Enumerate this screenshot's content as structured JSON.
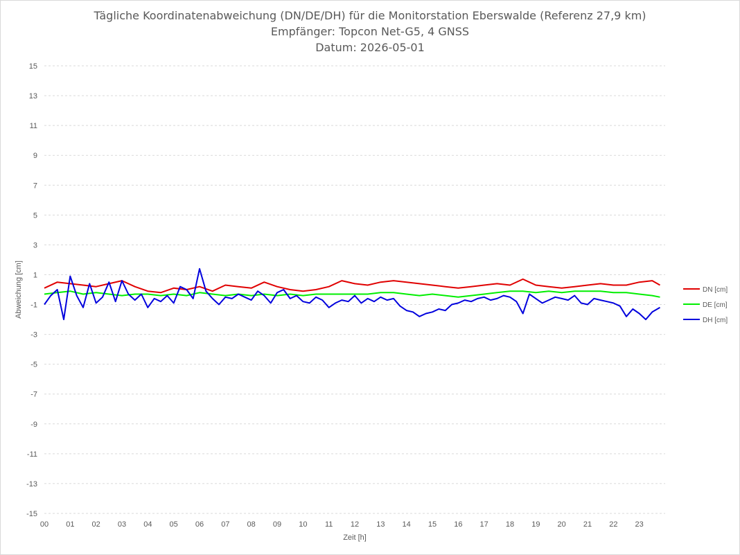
{
  "chart_data": {
    "type": "line",
    "title": "Tägliche Koordinatenabweichung (DN/DE/DH) für die Monitorstation Eberswalde (Referenz 27,9 km)",
    "subtitle": "Empfänger: Topcon Net-G5, 4 GNSS",
    "date_line": "Datum: 2026-05-01",
    "xlabel": "Zeit [h]",
    "ylabel": "Abweichung [cm]",
    "ylim": [
      -15,
      15
    ],
    "xlim": [
      0,
      24
    ],
    "y_ticks": [
      "15",
      "13",
      "11",
      "9",
      "7",
      "5",
      "3",
      "1",
      "-1",
      "-3",
      "-5",
      "-7",
      "-9",
      "-11",
      "-13",
      "-15"
    ],
    "x_ticks": [
      "00",
      "01",
      "02",
      "03",
      "04",
      "05",
      "06",
      "07",
      "08",
      "09",
      "10",
      "11",
      "12",
      "13",
      "14",
      "15",
      "16",
      "17",
      "18",
      "19",
      "20",
      "21",
      "22",
      "23"
    ],
    "grid": "horizontal dashed",
    "legend_position": "right",
    "series": [
      {
        "name": "DN [cm]",
        "color": "#e00000",
        "x": [
          0,
          0.5,
          1,
          1.5,
          2,
          2.5,
          3,
          3.5,
          4,
          4.5,
          5,
          5.5,
          6,
          6.5,
          7,
          7.5,
          8,
          8.5,
          9,
          9.5,
          10,
          10.5,
          11,
          11.5,
          12,
          12.5,
          13,
          13.5,
          14,
          14.5,
          15,
          15.5,
          16,
          16.5,
          17,
          17.5,
          18,
          18.5,
          19,
          19.5,
          20,
          20.5,
          21,
          21.5,
          22,
          22.5,
          23,
          23.5,
          23.8
        ],
        "values": [
          0.1,
          0.5,
          0.4,
          0.3,
          0.2,
          0.4,
          0.6,
          0.2,
          -0.1,
          -0.2,
          0.1,
          0.0,
          0.2,
          -0.1,
          0.3,
          0.2,
          0.1,
          0.5,
          0.2,
          0.0,
          -0.1,
          0.0,
          0.2,
          0.6,
          0.4,
          0.3,
          0.5,
          0.6,
          0.5,
          0.4,
          0.3,
          0.2,
          0.1,
          0.2,
          0.3,
          0.4,
          0.3,
          0.7,
          0.3,
          0.2,
          0.1,
          0.2,
          0.3,
          0.4,
          0.3,
          0.3,
          0.5,
          0.6,
          0.3
        ]
      },
      {
        "name": "DE [cm]",
        "color": "#00ee00",
        "x": [
          0,
          0.5,
          1,
          1.5,
          2,
          2.5,
          3,
          3.5,
          4,
          4.5,
          5,
          5.5,
          6,
          6.5,
          7,
          7.5,
          8,
          8.5,
          9,
          9.5,
          10,
          10.5,
          11,
          11.5,
          12,
          12.5,
          13,
          13.5,
          14,
          14.5,
          15,
          15.5,
          16,
          16.5,
          17,
          17.5,
          18,
          18.5,
          19,
          19.5,
          20,
          20.5,
          21,
          21.5,
          22,
          22.5,
          23,
          23.5,
          23.8
        ],
        "values": [
          -0.3,
          -0.2,
          -0.1,
          -0.3,
          -0.2,
          -0.3,
          -0.4,
          -0.3,
          -0.3,
          -0.4,
          -0.3,
          -0.4,
          -0.2,
          -0.3,
          -0.4,
          -0.3,
          -0.4,
          -0.3,
          -0.4,
          -0.3,
          -0.4,
          -0.3,
          -0.3,
          -0.3,
          -0.3,
          -0.3,
          -0.2,
          -0.2,
          -0.3,
          -0.4,
          -0.3,
          -0.4,
          -0.5,
          -0.4,
          -0.3,
          -0.2,
          -0.1,
          -0.1,
          -0.2,
          -0.1,
          -0.2,
          -0.1,
          -0.1,
          -0.1,
          -0.2,
          -0.2,
          -0.3,
          -0.4,
          -0.5
        ]
      },
      {
        "name": "DH [cm]",
        "color": "#0000dd",
        "x": [
          0,
          0.25,
          0.5,
          0.75,
          1,
          1.25,
          1.5,
          1.75,
          2,
          2.25,
          2.5,
          2.75,
          3,
          3.25,
          3.5,
          3.75,
          4,
          4.25,
          4.5,
          4.75,
          5,
          5.25,
          5.5,
          5.75,
          6,
          6.25,
          6.5,
          6.75,
          7,
          7.25,
          7.5,
          7.75,
          8,
          8.25,
          8.5,
          8.75,
          9,
          9.25,
          9.5,
          9.75,
          10,
          10.25,
          10.5,
          10.75,
          11,
          11.25,
          11.5,
          11.75,
          12,
          12.25,
          12.5,
          12.75,
          13,
          13.25,
          13.5,
          13.75,
          14,
          14.25,
          14.5,
          14.75,
          15,
          15.25,
          15.5,
          15.75,
          16,
          16.25,
          16.5,
          16.75,
          17,
          17.25,
          17.5,
          17.75,
          18,
          18.25,
          18.5,
          18.75,
          19,
          19.25,
          19.5,
          19.75,
          20,
          20.25,
          20.5,
          20.75,
          21,
          21.25,
          21.5,
          21.75,
          22,
          22.25,
          22.5,
          22.75,
          23,
          23.25,
          23.5,
          23.8
        ],
        "values": [
          -1.0,
          -0.4,
          0.0,
          -2.0,
          0.9,
          -0.4,
          -1.2,
          0.4,
          -0.9,
          -0.5,
          0.5,
          -0.8,
          0.6,
          -0.3,
          -0.7,
          -0.3,
          -1.2,
          -0.6,
          -0.8,
          -0.4,
          -0.9,
          0.2,
          0.0,
          -0.6,
          1.4,
          -0.1,
          -0.6,
          -1.0,
          -0.5,
          -0.6,
          -0.3,
          -0.5,
          -0.7,
          -0.1,
          -0.4,
          -0.9,
          -0.2,
          0.0,
          -0.6,
          -0.4,
          -0.8,
          -0.9,
          -0.5,
          -0.7,
          -1.2,
          -0.9,
          -0.7,
          -0.8,
          -0.4,
          -0.9,
          -0.6,
          -0.8,
          -0.5,
          -0.7,
          -0.6,
          -1.1,
          -1.4,
          -1.5,
          -1.8,
          -1.6,
          -1.5,
          -1.3,
          -1.4,
          -1.0,
          -0.9,
          -0.7,
          -0.8,
          -0.6,
          -0.5,
          -0.7,
          -0.6,
          -0.4,
          -0.5,
          -0.8,
          -1.6,
          -0.3,
          -0.6,
          -0.9,
          -0.7,
          -0.5,
          -0.6,
          -0.7,
          -0.4,
          -0.9,
          -1.0,
          -0.6,
          -0.7,
          -0.8,
          -0.9,
          -1.1,
          -1.8,
          -1.3,
          -1.6,
          -2.0,
          -1.5,
          -1.2
        ]
      }
    ]
  }
}
